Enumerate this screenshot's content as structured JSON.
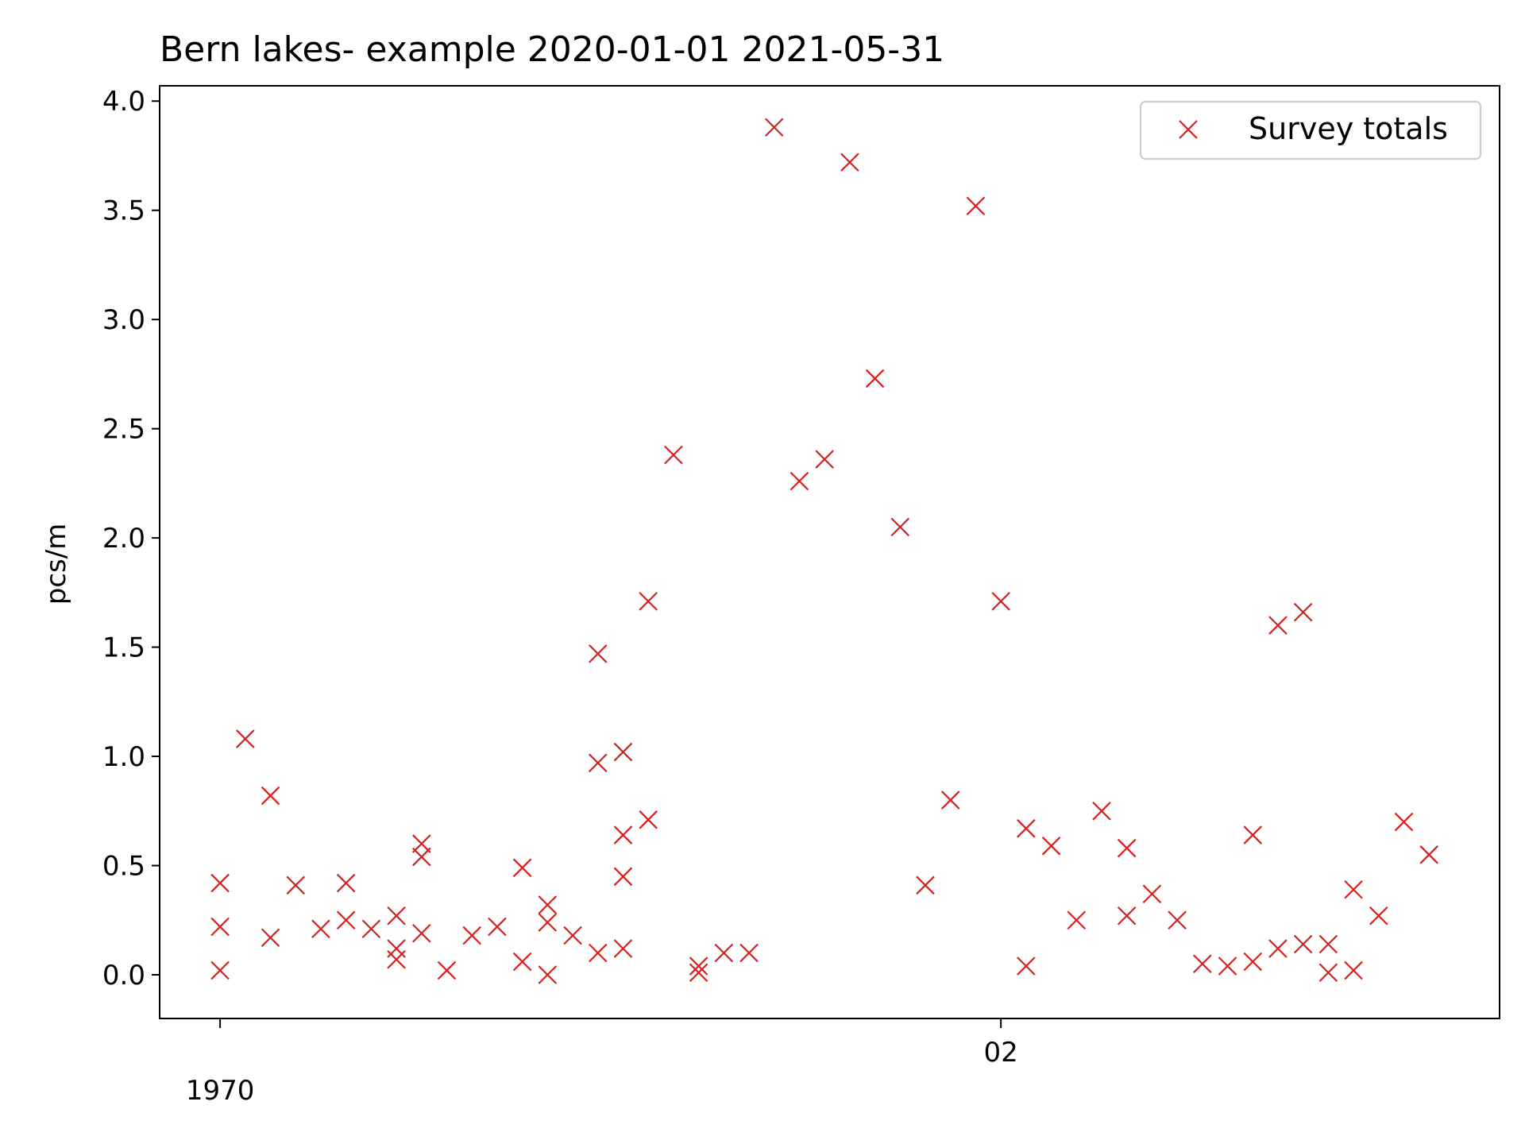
{
  "chart_data": {
    "type": "scatter",
    "title": "Bern lakes- example 2020-01-01 2021-05-31",
    "xlabel": "",
    "ylabel": "pcs/m",
    "ylim": [
      -0.2,
      4.07
    ],
    "xlim": [
      -2.4,
      50.8
    ],
    "yticks": [
      0.0,
      0.5,
      1.0,
      1.5,
      2.0,
      2.5,
      3.0,
      3.5,
      4.0
    ],
    "ytick_labels": [
      "0.0",
      "0.5",
      "1.0",
      "1.5",
      "2.0",
      "2.5",
      "3.0",
      "3.5",
      "4.0"
    ],
    "xticks": [
      {
        "x": 0,
        "major": "",
        "minor": "1970"
      },
      {
        "x": 31,
        "major": "02",
        "minor": ""
      }
    ],
    "grid": false,
    "legend": {
      "placement": "top-right",
      "entries": [
        "Survey totals"
      ]
    },
    "marker_color": "#d62020",
    "series": [
      {
        "name": "Survey totals",
        "marker": "x",
        "points": [
          [
            0,
            0.42
          ],
          [
            0,
            0.22
          ],
          [
            0,
            0.02
          ],
          [
            1,
            1.08
          ],
          [
            2,
            0.82
          ],
          [
            2,
            0.17
          ],
          [
            3,
            0.41
          ],
          [
            4,
            0.21
          ],
          [
            5,
            0.42
          ],
          [
            5,
            0.25
          ],
          [
            6,
            0.21
          ],
          [
            7,
            0.27
          ],
          [
            7,
            0.12
          ],
          [
            7,
            0.07
          ],
          [
            8,
            0.6
          ],
          [
            8,
            0.54
          ],
          [
            8,
            0.19
          ],
          [
            9,
            0.02
          ],
          [
            10,
            0.18
          ],
          [
            11,
            0.22
          ],
          [
            12,
            0.49
          ],
          [
            12,
            0.06
          ],
          [
            13,
            0.32
          ],
          [
            13,
            0.24
          ],
          [
            13,
            0.0
          ],
          [
            14,
            0.18
          ],
          [
            15,
            1.47
          ],
          [
            15,
            0.97
          ],
          [
            15,
            0.1
          ],
          [
            16,
            1.02
          ],
          [
            16,
            0.64
          ],
          [
            16,
            0.45
          ],
          [
            16,
            0.12
          ],
          [
            17,
            1.71
          ],
          [
            17,
            0.71
          ],
          [
            18,
            2.38
          ],
          [
            19,
            0.04
          ],
          [
            19,
            0.01
          ],
          [
            20,
            0.1
          ],
          [
            21,
            0.1
          ],
          [
            22,
            3.88
          ],
          [
            23,
            2.26
          ],
          [
            24,
            2.36
          ],
          [
            25,
            3.72
          ],
          [
            26,
            2.73
          ],
          [
            27,
            2.05
          ],
          [
            28,
            0.41
          ],
          [
            29,
            0.8
          ],
          [
            30,
            3.52
          ],
          [
            31,
            1.71
          ],
          [
            32,
            0.67
          ],
          [
            32,
            0.04
          ],
          [
            33,
            0.59
          ],
          [
            34,
            0.25
          ],
          [
            35,
            0.75
          ],
          [
            36,
            0.58
          ],
          [
            36,
            0.27
          ],
          [
            37,
            0.37
          ],
          [
            38,
            0.25
          ],
          [
            39,
            0.05
          ],
          [
            40,
            0.04
          ],
          [
            41,
            0.64
          ],
          [
            41,
            0.06
          ],
          [
            42,
            1.6
          ],
          [
            42,
            0.12
          ],
          [
            43,
            1.66
          ],
          [
            43,
            0.14
          ],
          [
            44,
            0.14
          ],
          [
            44,
            0.01
          ],
          [
            45,
            0.39
          ],
          [
            45,
            0.02
          ],
          [
            46,
            0.27
          ],
          [
            47,
            0.7
          ],
          [
            48,
            0.55
          ]
        ]
      }
    ]
  }
}
